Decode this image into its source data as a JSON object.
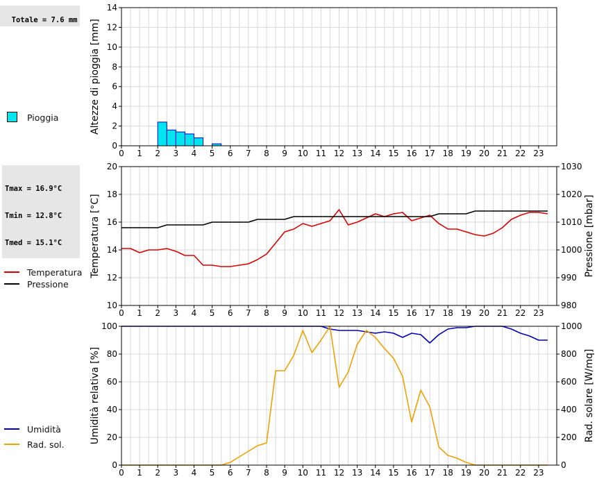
{
  "totale": "Totale = 7.6 mm",
  "stats": {
    "tmax": "Tmax = 16.9°C",
    "tmin": "Tmin = 12.8°C",
    "tmed": "Tmed = 15.1°C"
  },
  "legend": {
    "pioggia": "Pioggia",
    "temperatura": "Temperatura",
    "pressione": "Pressione",
    "umidita": "Umidità",
    "radsol": "Rad. sol."
  },
  "colors": {
    "rain": "#00e5ee",
    "temperature": "#dd0000",
    "pressure": "#000000",
    "humidity": "#0000bb",
    "radiation": "#f0a000",
    "grid": "#d8d8d8"
  },
  "chart_data": [
    {
      "type": "bar",
      "ylabel": "Altezze di pioggia [mm]",
      "ylim": [
        0,
        14
      ],
      "yticks": [
        0,
        2,
        4,
        6,
        8,
        10,
        12,
        14
      ],
      "xlim": [
        0,
        24
      ],
      "xticks": [
        "0",
        "1",
        "2",
        "3",
        "4",
        "5",
        "6",
        "7",
        "8",
        "9",
        "10",
        "11",
        "12",
        "13",
        "14",
        "15",
        "16",
        "17",
        "18",
        "19",
        "20",
        "21",
        "22",
        "23"
      ],
      "grid": true,
      "series": [
        {
          "name": "Pioggia",
          "x": [
            2.0,
            2.5,
            3.0,
            3.5,
            4.0,
            5.0
          ],
          "values": [
            2.4,
            1.6,
            1.4,
            1.2,
            0.8,
            0.2
          ]
        }
      ]
    },
    {
      "type": "line",
      "ylabel": "Temperatura [°C]",
      "ylim": [
        10,
        20
      ],
      "yticks": [
        10,
        12,
        14,
        16,
        18,
        20
      ],
      "y2label": "Pressione [mbar]",
      "y2lim": [
        980,
        1030
      ],
      "y2ticks": [
        980,
        990,
        1000,
        1010,
        1020,
        1030
      ],
      "xlim": [
        0,
        24
      ],
      "xticks": [
        "0",
        "1",
        "2",
        "3",
        "4",
        "5",
        "6",
        "7",
        "8",
        "9",
        "10",
        "11",
        "12",
        "13",
        "14",
        "15",
        "16",
        "17",
        "18",
        "19",
        "20",
        "21",
        "22",
        "23"
      ],
      "grid": true,
      "series": [
        {
          "name": "Temperatura",
          "axis": "left",
          "x": [
            0,
            0.5,
            1,
            1.5,
            2,
            2.5,
            3,
            3.5,
            4,
            4.5,
            5,
            5.5,
            6,
            6.5,
            7,
            7.5,
            8,
            8.5,
            9,
            9.5,
            10,
            10.5,
            11,
            11.5,
            12,
            12.5,
            13,
            13.5,
            14,
            14.5,
            15,
            15.5,
            16,
            16.5,
            17,
            17.5,
            18,
            18.5,
            19,
            19.5,
            20,
            20.5,
            21,
            21.5,
            22,
            22.5,
            23,
            23.5
          ],
          "values": [
            14.1,
            14.1,
            13.8,
            14.0,
            14.0,
            14.1,
            13.9,
            13.6,
            13.6,
            12.9,
            12.9,
            12.8,
            12.8,
            12.9,
            13.0,
            13.3,
            13.7,
            14.5,
            15.3,
            15.5,
            15.9,
            15.7,
            15.9,
            16.1,
            16.9,
            15.8,
            16.0,
            16.3,
            16.6,
            16.4,
            16.6,
            16.7,
            16.1,
            16.3,
            16.5,
            15.9,
            15.5,
            15.5,
            15.3,
            15.1,
            15.0,
            15.2,
            15.6,
            16.2,
            16.5,
            16.7,
            16.7,
            16.6
          ]
        },
        {
          "name": "Pressione",
          "axis": "right",
          "x": [
            0,
            2,
            2.5,
            4.5,
            5,
            7,
            7.5,
            9,
            9.5,
            17,
            17.5,
            19,
            19.5,
            23.5
          ],
          "values": [
            1008,
            1008,
            1009,
            1009,
            1010,
            1010,
            1011,
            1011,
            1012,
            1012,
            1013,
            1013,
            1014,
            1014
          ]
        }
      ]
    },
    {
      "type": "line",
      "ylabel": "Umidità relativa [%]",
      "ylim": [
        0,
        100
      ],
      "yticks": [
        0,
        20,
        40,
        60,
        80,
        100
      ],
      "y2label": "Rad. solare [W/mq]",
      "y2lim": [
        0,
        1000
      ],
      "y2ticks": [
        0,
        200,
        400,
        600,
        800,
        1000
      ],
      "xlim": [
        0,
        24
      ],
      "xticks": [
        "0",
        "1",
        "2",
        "3",
        "4",
        "5",
        "6",
        "7",
        "8",
        "9",
        "10",
        "11",
        "12",
        "13",
        "14",
        "15",
        "16",
        "17",
        "18",
        "19",
        "20",
        "21",
        "22",
        "23"
      ],
      "grid": true,
      "series": [
        {
          "name": "Umidità",
          "axis": "left",
          "x": [
            0,
            11,
            11.5,
            12,
            12.5,
            13,
            13.5,
            14,
            14.5,
            15,
            15.5,
            16,
            16.5,
            17,
            17.5,
            18,
            18.5,
            19,
            19.5,
            20,
            20.5,
            21,
            21.5,
            22,
            22.5,
            23,
            23.5
          ],
          "values": [
            100,
            100,
            98,
            97,
            97,
            97,
            96,
            95,
            96,
            95,
            92,
            95,
            94,
            88,
            94,
            98,
            99,
            99,
            100,
            100,
            100,
            100,
            98,
            95,
            93,
            90,
            90
          ]
        },
        {
          "name": "Rad. sol.",
          "axis": "right",
          "x": [
            0,
            5.5,
            6,
            6.5,
            7,
            7.5,
            8,
            8.5,
            9,
            9.5,
            10,
            10.5,
            11,
            11.5,
            12,
            12.5,
            13,
            13.5,
            14,
            14.5,
            15,
            15.5,
            16,
            16.5,
            17,
            17.5,
            18,
            18.5,
            19,
            19.5,
            20,
            23.5
          ],
          "values": [
            0,
            0,
            20,
            60,
            100,
            140,
            160,
            680,
            680,
            790,
            970,
            810,
            900,
            1000,
            560,
            670,
            870,
            970,
            920,
            840,
            770,
            640,
            310,
            540,
            420,
            130,
            70,
            50,
            20,
            0,
            0,
            0
          ]
        }
      ]
    }
  ]
}
